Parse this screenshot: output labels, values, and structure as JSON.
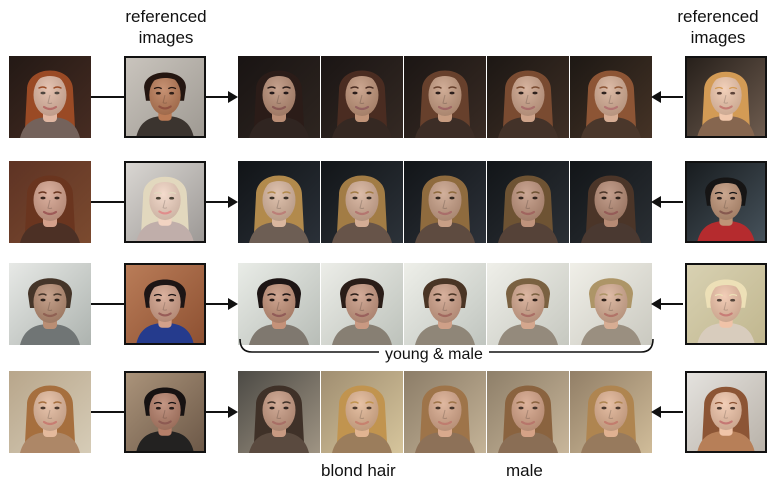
{
  "headers": {
    "left": "referenced images",
    "right": "referenced images"
  },
  "captions": {
    "young_male": "young & male",
    "blond_hair": "blond hair",
    "male": "male"
  },
  "palette": {
    "outline": "#111111",
    "background": "#ffffff"
  }
}
